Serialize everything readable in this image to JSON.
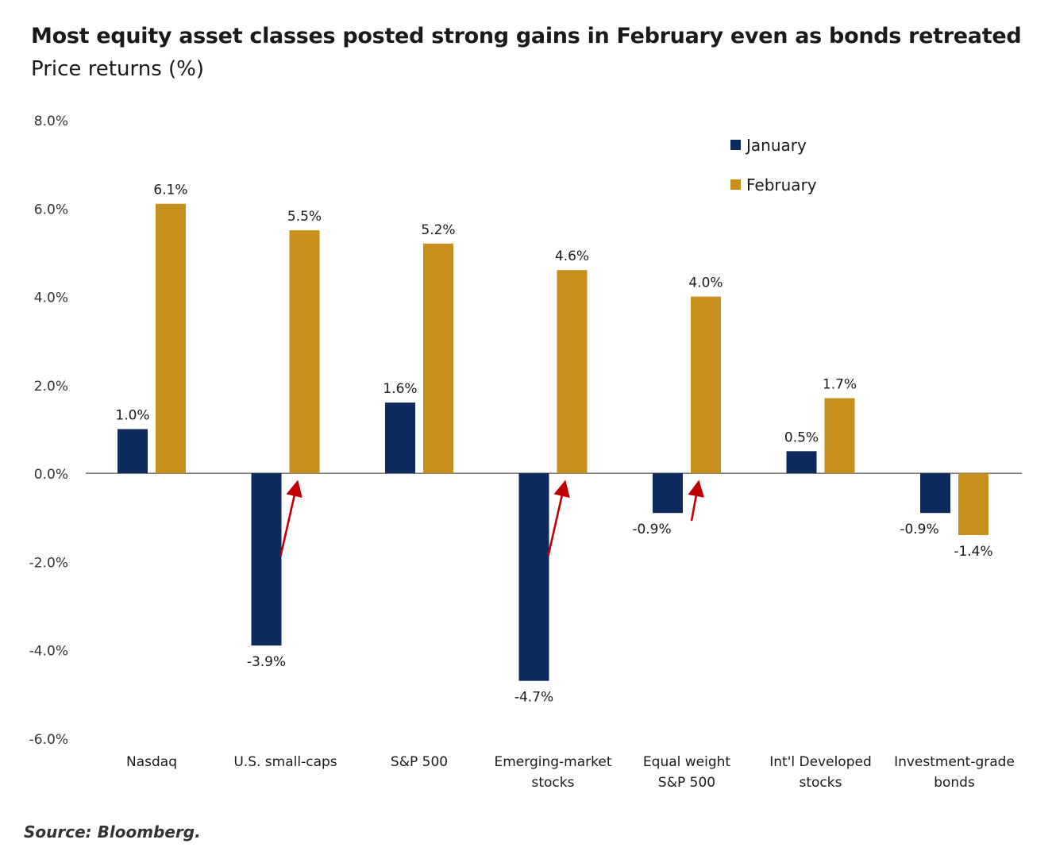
{
  "title": "Most equity asset classes posted strong gains in February even as bonds retreated",
  "subtitle": "Price returns (%)",
  "source": "Source: Bloomberg.",
  "colors": {
    "january": "#0d2a5f",
    "february": "#c7901c",
    "arrow": "#c00000",
    "axis": "#555555"
  },
  "chart_data": {
    "type": "bar",
    "categories": [
      [
        "Nasdaq"
      ],
      [
        "U.S. small-caps"
      ],
      [
        "S&P 500"
      ],
      [
        "Emerging-market",
        "stocks"
      ],
      [
        "Equal weight",
        "S&P 500"
      ],
      [
        "Int'l Developed",
        "stocks"
      ],
      [
        "Investment-grade",
        "bonds"
      ]
    ],
    "series": [
      {
        "name": "January",
        "values": [
          1.0,
          -3.9,
          1.6,
          -4.7,
          -0.9,
          0.5,
          -0.9
        ],
        "labels": [
          "1.0%",
          "-3.9%",
          "1.6%",
          "-4.7%",
          "-0.9%",
          "0.5%",
          "-0.9%"
        ]
      },
      {
        "name": "February",
        "values": [
          6.1,
          5.5,
          5.2,
          4.6,
          4.0,
          1.7,
          -1.4
        ],
        "labels": [
          "6.1%",
          "5.5%",
          "5.2%",
          "4.6%",
          "4.0%",
          "1.7%",
          "-1.4%"
        ]
      }
    ],
    "y_ticks": [
      8,
      6,
      4,
      2,
      0,
      -2,
      -4,
      -6
    ],
    "y_tick_labels": [
      "8.0%",
      "6.0%",
      "4.0%",
      "2.0%",
      "0.0%",
      "-2.0%",
      "-4.0%",
      "-6.0%"
    ],
    "ylim": [
      -6,
      8
    ],
    "grid": false,
    "legend_position": "top-right",
    "annotations": {
      "upward_arrows_on_categories": [
        1,
        3,
        4
      ]
    }
  }
}
